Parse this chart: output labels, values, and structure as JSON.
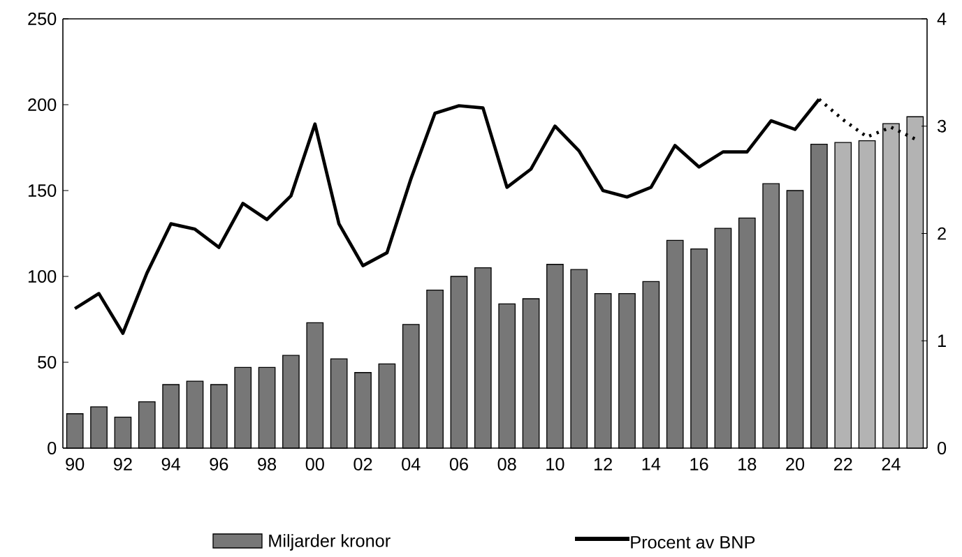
{
  "chart_data": {
    "type": "bar",
    "categories": [
      "90",
      null,
      "92",
      null,
      "94",
      null,
      "96",
      null,
      "98",
      null,
      "00",
      null,
      "02",
      null,
      "04",
      null,
      "06",
      null,
      "08",
      null,
      "10",
      null,
      "12",
      null,
      "14",
      null,
      "16",
      null,
      "18",
      null,
      "20",
      null,
      "22",
      null,
      "24",
      null
    ],
    "series": [
      {
        "name": "Miljarder kronor",
        "color": "#777777",
        "colors": [
          "#777777",
          "#777777",
          "#777777",
          "#777777",
          "#777777",
          "#777777",
          "#777777",
          "#777777",
          "#777777",
          "#777777",
          "#777777",
          "#777777",
          "#777777",
          "#777777",
          "#777777",
          "#777777",
          "#777777",
          "#777777",
          "#777777",
          "#777777",
          "#777777",
          "#777777",
          "#777777",
          "#777777",
          "#777777",
          "#777777",
          "#777777",
          "#777777",
          "#777777",
          "#808080",
          "#777777",
          "#777777",
          "#b3b3b3",
          "#b3b3b3",
          "#b3b3b3",
          "#b3b3b3"
        ],
        "values": [
          20,
          24,
          18,
          27,
          37,
          39,
          37,
          47,
          47,
          54,
          73,
          52,
          44,
          49,
          72,
          92,
          100,
          105,
          84,
          87,
          107,
          104,
          90,
          90,
          97,
          121,
          116,
          128,
          134,
          154,
          150,
          177,
          178,
          179,
          189,
          193
        ]
      },
      {
        "name": "Procent av BNP",
        "type": "line",
        "axis": "y2",
        "color": "#000000",
        "line_style": "solid",
        "values": [
          1.3,
          1.44,
          1.07,
          1.63,
          2.09,
          2.04,
          1.87,
          2.28,
          2.13,
          2.35,
          3.02,
          2.09,
          1.7,
          1.82,
          2.51,
          3.12,
          3.19,
          3.17,
          2.43,
          2.6,
          3.0,
          2.77,
          2.4,
          2.34,
          2.43,
          2.82,
          2.62,
          2.76,
          2.76,
          3.05,
          2.97,
          3.25,
          null,
          null,
          null,
          null
        ]
      },
      {
        "type": "line",
        "axis": "y2",
        "color": "#000000",
        "line_style": "dotted",
        "values": [
          null,
          null,
          null,
          null,
          null,
          null,
          null,
          null,
          null,
          null,
          null,
          null,
          null,
          null,
          null,
          null,
          null,
          null,
          null,
          null,
          null,
          null,
          null,
          null,
          null,
          null,
          null,
          null,
          null,
          null,
          null,
          3.25,
          3.06,
          2.9,
          2.99,
          2.88
        ]
      }
    ],
    "ylim": [
      0,
      250
    ],
    "yticks": [
      0,
      50,
      100,
      150,
      200,
      250
    ],
    "y2lim": [
      0,
      4
    ],
    "y2ticks": [
      0,
      1,
      2,
      3,
      4
    ],
    "legend": "bottom"
  }
}
